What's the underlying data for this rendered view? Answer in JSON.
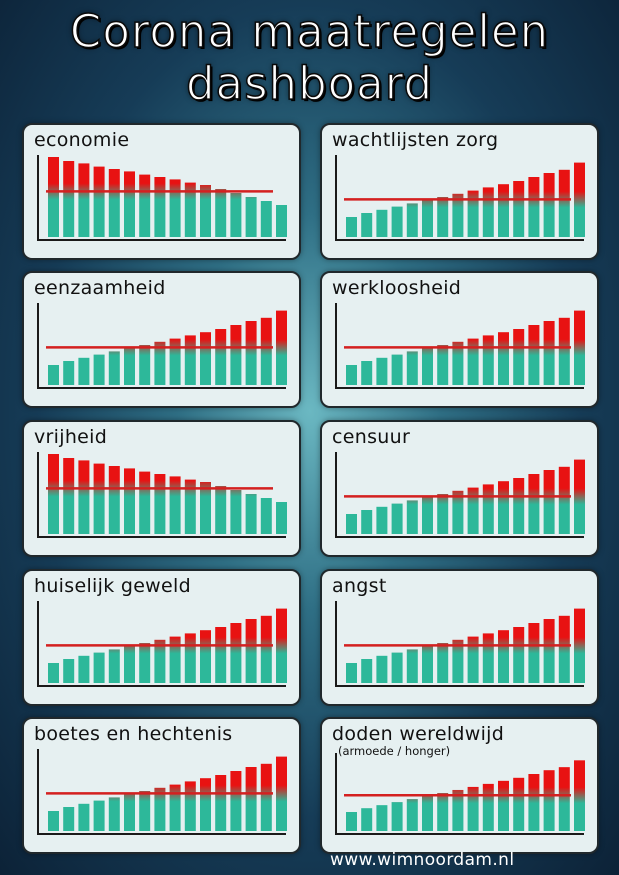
{
  "title": {
    "line1": "Corona maatregelen",
    "line2": "dashboard"
  },
  "footer": "www.wimnoordam.nl",
  "colors": {
    "teal": "#2db89a",
    "red": "#e81212",
    "line": "#d42020",
    "axis": "#1a1a1a"
  },
  "chart_data": [
    {
      "type": "bar",
      "title": "economie",
      "trend": "down",
      "values": [
        100,
        95,
        92,
        88,
        85,
        82,
        78,
        75,
        72,
        68,
        65,
        60,
        55,
        50,
        45,
        40
      ],
      "threshold": 57,
      "ylim": [
        0,
        100
      ]
    },
    {
      "type": "bar",
      "title": "wachtlijsten zorg",
      "trend": "up",
      "values": [
        25,
        30,
        34,
        38,
        42,
        46,
        50,
        54,
        58,
        62,
        66,
        70,
        75,
        80,
        84,
        93
      ],
      "threshold": 47,
      "ylim": [
        0,
        100
      ]
    },
    {
      "type": "bar",
      "title": "eenzaamheid",
      "trend": "up",
      "values": [
        25,
        30,
        34,
        38,
        42,
        46,
        50,
        54,
        58,
        62,
        66,
        70,
        75,
        80,
        84,
        93
      ],
      "threshold": 47,
      "ylim": [
        0,
        100
      ]
    },
    {
      "type": "bar",
      "title": "werkloosheid",
      "trend": "up",
      "values": [
        25,
        30,
        34,
        38,
        42,
        46,
        50,
        54,
        58,
        62,
        66,
        70,
        75,
        80,
        84,
        93
      ],
      "threshold": 47,
      "ylim": [
        0,
        100
      ]
    },
    {
      "type": "bar",
      "title": "vrijheid",
      "trend": "down",
      "values": [
        100,
        95,
        92,
        88,
        85,
        82,
        78,
        75,
        72,
        68,
        65,
        60,
        55,
        50,
        45,
        40
      ],
      "threshold": 57,
      "ylim": [
        0,
        100
      ]
    },
    {
      "type": "bar",
      "title": "censuur",
      "trend": "up",
      "values": [
        25,
        30,
        34,
        38,
        42,
        46,
        50,
        54,
        58,
        62,
        66,
        70,
        75,
        80,
        84,
        93
      ],
      "threshold": 47,
      "ylim": [
        0,
        100
      ]
    },
    {
      "type": "bar",
      "title": "huiselijk geweld",
      "trend": "up",
      "values": [
        25,
        30,
        34,
        38,
        42,
        46,
        50,
        54,
        58,
        62,
        66,
        70,
        75,
        80,
        84,
        93
      ],
      "threshold": 47,
      "ylim": [
        0,
        100
      ]
    },
    {
      "type": "bar",
      "title": "angst",
      "trend": "up",
      "values": [
        25,
        30,
        34,
        38,
        42,
        46,
        50,
        54,
        58,
        62,
        66,
        70,
        75,
        80,
        84,
        93
      ],
      "threshold": 47,
      "ylim": [
        0,
        100
      ]
    },
    {
      "type": "bar",
      "title": "boetes en hechtenis",
      "trend": "up",
      "values": [
        25,
        30,
        34,
        38,
        42,
        46,
        50,
        54,
        58,
        62,
        66,
        70,
        75,
        80,
        84,
        93
      ],
      "threshold": 47,
      "ylim": [
        0,
        100
      ]
    },
    {
      "type": "bar",
      "title": "doden  wereldwijd",
      "subtitle": "(armoede / honger)",
      "trend": "up",
      "values": [
        25,
        30,
        34,
        38,
        42,
        46,
        50,
        54,
        58,
        62,
        66,
        70,
        75,
        80,
        84,
        93
      ],
      "threshold": 47,
      "ylim": [
        0,
        100
      ]
    }
  ]
}
